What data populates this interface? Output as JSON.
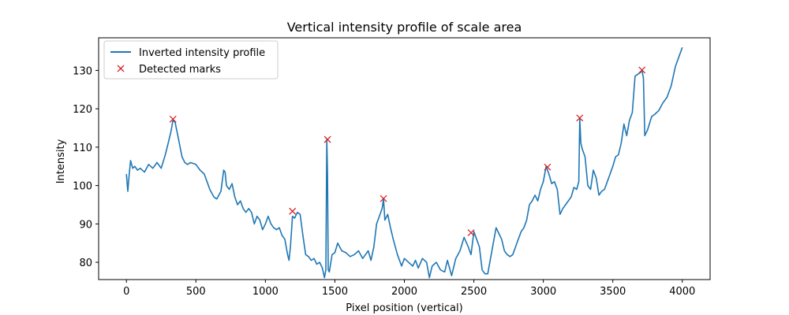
{
  "chart_data": {
    "type": "line",
    "title": "Vertical intensity profile of scale area",
    "xlabel": "Pixel position (vertical)",
    "ylabel": "Intensity",
    "xlim": [
      -200,
      4200
    ],
    "ylim": [
      75.5,
      138.5
    ],
    "xticks": [
      0,
      500,
      1000,
      1500,
      2000,
      2500,
      3000,
      3500,
      4000
    ],
    "yticks": [
      80,
      90,
      100,
      110,
      120,
      130
    ],
    "grid": false,
    "legend_position": "upper-left",
    "series": [
      {
        "name": "Inverted intensity profile",
        "kind": "line",
        "color": "#1f77b4",
        "x": [
          0,
          10,
          20,
          30,
          45,
          60,
          80,
          100,
          130,
          160,
          190,
          220,
          250,
          280,
          300,
          320,
          335,
          350,
          370,
          400,
          420,
          440,
          460,
          500,
          530,
          560,
          580,
          600,
          630,
          650,
          680,
          700,
          710,
          720,
          740,
          760,
          780,
          800,
          820,
          840,
          860,
          880,
          900,
          920,
          940,
          960,
          980,
          1000,
          1020,
          1040,
          1060,
          1080,
          1100,
          1120,
          1140,
          1160,
          1170,
          1180,
          1195,
          1210,
          1230,
          1250,
          1270,
          1290,
          1310,
          1330,
          1350,
          1370,
          1390,
          1410,
          1425,
          1435,
          1442,
          1447,
          1452,
          1460,
          1480,
          1500,
          1520,
          1550,
          1580,
          1610,
          1640,
          1670,
          1700,
          1720,
          1740,
          1760,
          1780,
          1800,
          1820,
          1840,
          1850,
          1860,
          1880,
          1900,
          1920,
          1950,
          1980,
          2000,
          2030,
          2060,
          2080,
          2100,
          2130,
          2160,
          2180,
          2200,
          2230,
          2260,
          2290,
          2310,
          2340,
          2370,
          2400,
          2430,
          2460,
          2480,
          2500,
          2520,
          2540,
          2560,
          2580,
          2600,
          2620,
          2640,
          2660,
          2680,
          2700,
          2720,
          2740,
          2760,
          2780,
          2800,
          2820,
          2840,
          2860,
          2880,
          2900,
          2920,
          2940,
          2960,
          2980,
          3000,
          3020,
          3040,
          3060,
          3080,
          3100,
          3120,
          3140,
          3160,
          3180,
          3200,
          3220,
          3240,
          3255,
          3262,
          3270,
          3280,
          3300,
          3320,
          3340,
          3360,
          3380,
          3400,
          3420,
          3440,
          3460,
          3480,
          3500,
          3520,
          3540,
          3560,
          3580,
          3600,
          3620,
          3640,
          3660,
          3680,
          3700,
          3710,
          3720,
          3730,
          3750,
          3780,
          3800,
          3830,
          3860,
          3890,
          3920,
          3950,
          3970,
          4000
        ],
        "y": [
          103,
          98.5,
          103,
          106.5,
          104.5,
          105,
          104,
          104.5,
          103.5,
          105.5,
          104.5,
          106,
          104.5,
          108,
          111,
          114,
          117,
          116.5,
          113,
          107.5,
          106,
          105.5,
          106,
          105.5,
          104,
          103,
          101,
          99,
          97,
          96.5,
          98.5,
          104,
          103.5,
          100,
          99,
          100.5,
          97,
          95,
          96,
          94,
          93,
          94,
          93,
          90,
          92,
          91,
          88.5,
          90,
          92,
          90,
          89,
          88.5,
          89,
          87,
          86,
          82,
          80.5,
          84,
          92,
          91.5,
          93,
          92.5,
          87,
          82,
          81.5,
          80.5,
          81,
          79.5,
          80,
          78.5,
          76,
          78,
          112,
          103,
          78,
          77.5,
          82,
          82.5,
          85,
          83,
          82.5,
          81.5,
          82,
          83,
          81,
          82,
          83,
          80.5,
          84,
          90,
          92,
          94,
          96.5,
          91,
          92.5,
          89,
          86,
          82,
          79,
          81,
          80,
          79,
          80.5,
          78.5,
          81,
          80,
          76,
          79,
          80,
          78,
          77.5,
          80.5,
          76.5,
          81,
          83,
          86.5,
          84,
          82,
          88,
          86,
          84,
          78,
          77,
          77,
          81,
          85,
          89,
          87.5,
          86,
          83,
          82,
          81.5,
          82,
          84,
          86,
          88,
          89,
          91,
          95,
          96,
          97.5,
          96,
          99,
          101,
          105,
          103,
          100.5,
          101,
          99,
          92.5,
          94,
          95,
          96,
          97,
          99.5,
          99,
          101,
          117.5,
          111,
          109.5,
          107.5,
          100,
          99,
          104,
          102,
          97.5,
          98.5,
          99,
          101,
          103,
          105,
          107.5,
          108,
          111,
          116,
          113,
          117,
          119,
          128.5,
          129,
          129.5,
          130,
          128,
          113,
          114.5,
          118,
          118.5,
          119.5,
          121.5,
          123,
          126,
          131,
          133,
          136
        ]
      },
      {
        "name": "Detected marks",
        "kind": "marker",
        "marker": "x",
        "color": "#d62728",
        "x": [
          335,
          1195,
          1447,
          1850,
          2480,
          3030,
          3262,
          3710
        ],
        "y": [
          117.3,
          93.3,
          112,
          96.6,
          87.7,
          104.8,
          117.6,
          130.1
        ]
      }
    ]
  }
}
